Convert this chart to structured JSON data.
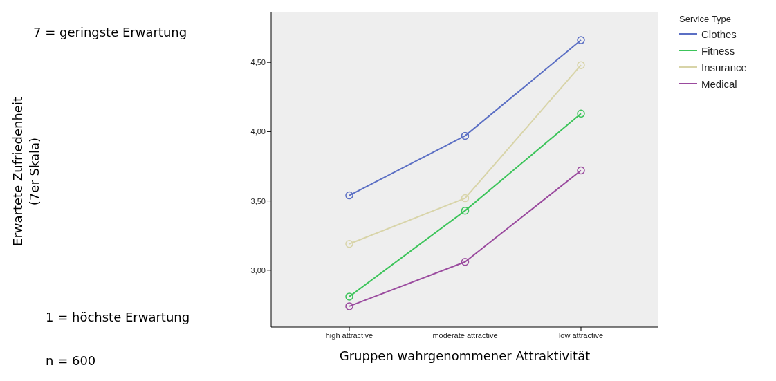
{
  "chart_data": {
    "type": "line",
    "xlabel": "Gruppen wahrgenommener Attraktivität",
    "legend_title": "Service Type",
    "legend": "top right",
    "marker": "circle",
    "line_style": "solid",
    "grid": false,
    "annotations": [
      "7 = geringste Erwartung",
      "1 = höchste Erwartung",
      "n = 600",
      "Erwartete Zufriedenheit\n(7er Skala)"
    ],
    "categories": [
      "high attractive",
      "moderate attractive",
      "low attractive"
    ],
    "ylim": [
      2.59,
      4.86
    ],
    "yticks": [
      {
        "value": 3,
        "label": "3,00"
      },
      {
        "value": 3.5,
        "label": "3,50"
      },
      {
        "value": 4,
        "label": "4,00"
      },
      {
        "value": 4.5,
        "label": "4,50"
      }
    ],
    "series": [
      {
        "name": "Clothes",
        "color": "#5b6fc4",
        "values": [
          3.54,
          3.97,
          4.66
        ]
      },
      {
        "name": "Fitness",
        "color": "#3cc45a",
        "values": [
          2.81,
          3.43,
          4.13
        ]
      },
      {
        "name": "Insurance",
        "color": "#d8d4a8",
        "values": [
          3.19,
          3.52,
          4.48
        ]
      },
      {
        "name": "Medical",
        "color": "#9a4a9e",
        "values": [
          2.74,
          3.06,
          3.72
        ]
      }
    ]
  }
}
